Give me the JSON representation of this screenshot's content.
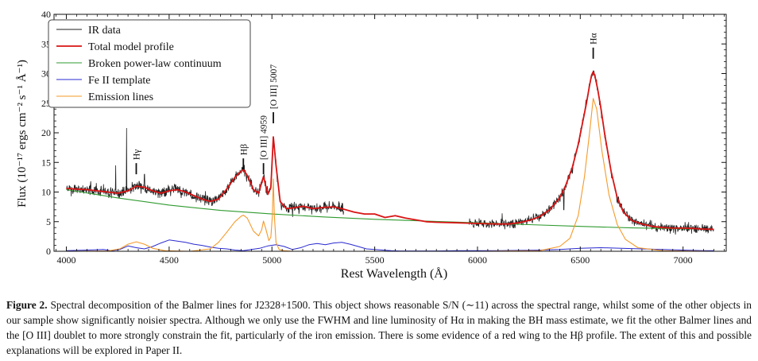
{
  "colors": {
    "ir_data": "#222222",
    "model": "#d81414",
    "continuum": "#2f9a2f",
    "fe": "#2a2ad0",
    "emission": "#f59a2a"
  },
  "chart_data": {
    "type": "line",
    "xlabel": "Rest Wavelength (Å)",
    "ylabel": "Flux (10⁻¹⁷ ergs cm⁻² s⁻¹ Å⁻¹)",
    "xlim": [
      3940,
      7210
    ],
    "ylim": [
      0,
      40
    ],
    "xticks": [
      4000,
      4500,
      5000,
      5500,
      6000,
      6500,
      7000
    ],
    "yticks": [
      0,
      5,
      10,
      15,
      20,
      25,
      30,
      35,
      40
    ],
    "legend": {
      "position": "top-left",
      "entries": [
        {
          "label": "IR data",
          "color": "#222222"
        },
        {
          "label": "Total model profile",
          "color": "#d81414"
        },
        {
          "label": "Broken power-law continuum",
          "color": "#2f9a2f"
        },
        {
          "label": "Fe II template",
          "color": "#2a2ad0"
        },
        {
          "label": "Emission lines",
          "color": "#f59a2a"
        }
      ]
    },
    "annotations": [
      {
        "label": "Hγ",
        "x": 4340,
        "y": 13.0
      },
      {
        "label": "Hβ",
        "x": 4861,
        "y": 13.8
      },
      {
        "label": "[O III] 4959",
        "x": 4959,
        "y": 13.0
      },
      {
        "label": "[O III] 5007",
        "x": 5007,
        "y": 21.6
      },
      {
        "label": "Hα",
        "x": 6563,
        "y": 32.5
      }
    ],
    "series": [
      {
        "name": "Broken power-law continuum",
        "x": [
          4000,
          4250,
          4500,
          4750,
          5000,
          5250,
          5500,
          5750,
          6000,
          6250,
          6500,
          6750,
          7000,
          7150
        ],
        "values": [
          10.4,
          9.0,
          7.8,
          6.9,
          6.3,
          5.8,
          5.4,
          5.1,
          4.8,
          4.5,
          4.2,
          3.95,
          3.8,
          3.7
        ]
      },
      {
        "name": "Total model profile",
        "x": [
          4000,
          4050,
          4100,
          4150,
          4200,
          4250,
          4300,
          4340,
          4380,
          4420,
          4460,
          4500,
          4540,
          4580,
          4620,
          4660,
          4700,
          4740,
          4780,
          4820,
          4850,
          4861,
          4880,
          4910,
          4935,
          4959,
          4980,
          4995,
          5007,
          5020,
          5040,
          5070,
          5100,
          5150,
          5200,
          5250,
          5300,
          5350,
          5400,
          5450,
          5500,
          5550,
          5600,
          5650,
          5700,
          5750,
          5800,
          5850,
          5900,
          5950,
          6000,
          6050,
          6100,
          6150,
          6200,
          6250,
          6300,
          6350,
          6400,
          6430,
          6460,
          6490,
          6510,
          6530,
          6545,
          6555,
          6563,
          6572,
          6585,
          6600,
          6620,
          6650,
          6680,
          6710,
          6750,
          6800,
          6850,
          6900,
          6950,
          7000,
          7050,
          7100,
          7150
        ],
        "values": [
          10.6,
          10.5,
          10.4,
          10.2,
          10.0,
          9.8,
          10.2,
          11.0,
          10.8,
          10.2,
          9.8,
          10.2,
          10.4,
          10.0,
          9.4,
          8.8,
          8.4,
          8.8,
          10.5,
          12.5,
          13.5,
          13.8,
          12.8,
          10.4,
          9.8,
          12.6,
          9.6,
          10.8,
          19.3,
          14.5,
          8.4,
          7.2,
          7.3,
          7.6,
          7.2,
          7.4,
          7.5,
          7.1,
          6.6,
          6.3,
          6.3,
          5.7,
          6.0,
          5.6,
          5.3,
          5.0,
          4.9,
          4.85,
          4.8,
          4.75,
          4.7,
          4.65,
          4.6,
          4.6,
          4.8,
          5.2,
          5.8,
          7.0,
          9.0,
          11.2,
          14.0,
          18.0,
          21.5,
          25.0,
          28.0,
          29.7,
          30.3,
          29.5,
          27.3,
          24.2,
          19.5,
          13.5,
          9.0,
          6.6,
          5.2,
          4.6,
          4.2,
          4.0,
          3.9,
          3.9,
          3.85,
          3.75,
          3.7
        ]
      },
      {
        "name": "Fe II template",
        "x": [
          4000,
          4100,
          4180,
          4220,
          4260,
          4300,
          4340,
          4380,
          4420,
          4460,
          4500,
          4540,
          4580,
          4620,
          4660,
          4700,
          4740,
          4780,
          4820,
          4860,
          4900,
          4940,
          4980,
          5020,
          5060,
          5100,
          5140,
          5180,
          5220,
          5260,
          5300,
          5340,
          5380,
          5420,
          5460,
          5500,
          5540,
          5580,
          5620,
          5700,
          5800,
          5900,
          6000,
          6100,
          6200,
          6300,
          6400,
          6500,
          6600,
          6700,
          6800,
          6900,
          7000,
          7100,
          7150
        ],
        "values": [
          0.1,
          0.2,
          0.3,
          0.1,
          0.3,
          0.9,
          0.6,
          0.4,
          0.8,
          1.4,
          1.9,
          1.7,
          1.5,
          1.2,
          1.0,
          0.7,
          0.5,
          0.4,
          0.2,
          0.1,
          0.3,
          0.5,
          0.9,
          1.1,
          0.8,
          0.3,
          0.6,
          1.1,
          1.3,
          1.1,
          1.4,
          1.5,
          1.2,
          0.8,
          0.4,
          0.3,
          0.2,
          0.1,
          0.05,
          0.05,
          0.05,
          0.1,
          0.1,
          0.1,
          0.15,
          0.2,
          0.3,
          0.5,
          0.6,
          0.5,
          0.4,
          0.3,
          0.2,
          0.1,
          0.1
        ]
      },
      {
        "name": "Emission lines",
        "x": [
          4000,
          4200,
          4260,
          4300,
          4340,
          4380,
          4420,
          4480,
          4600,
          4700,
          4740,
          4780,
          4820,
          4850,
          4861,
          4880,
          4910,
          4935,
          4950,
          4959,
          4970,
          4985,
          4995,
          5002,
          5007,
          5012,
          5020,
          5035,
          5060,
          5100,
          5200,
          5400,
          6000,
          6300,
          6400,
          6450,
          6490,
          6520,
          6545,
          6563,
          6580,
          6605,
          6640,
          6680,
          6720,
          6780,
          6900,
          7150
        ],
        "values": [
          0,
          0.05,
          0.4,
          1.2,
          1.6,
          1.2,
          0.5,
          0.1,
          0,
          0.4,
          1.5,
          3.2,
          5.0,
          5.9,
          6.1,
          5.6,
          3.4,
          2.6,
          3.6,
          5.1,
          3.8,
          1.8,
          2.4,
          6.0,
          12.2,
          6.0,
          1.5,
          0.3,
          0.1,
          0,
          0,
          0,
          0,
          0.1,
          0.8,
          2.2,
          6.0,
          12.5,
          20.0,
          25.8,
          24.0,
          17.0,
          9.5,
          4.5,
          2.0,
          0.6,
          0.1,
          0
        ]
      }
    ],
    "noisy_data_segments": [
      {
        "name": "IR data",
        "x_range": [
          4000,
          5350
        ],
        "follows": "Total model profile",
        "noise_sd": 0.7,
        "spikes": [
          {
            "x": 4240,
            "y": 14.5
          },
          {
            "x": 4293,
            "y": 20.8
          },
          {
            "x": 4380,
            "y": 13.0
          },
          {
            "x": 5007,
            "y": 18.8
          }
        ]
      },
      {
        "name": "IR data",
        "x_range": [
          5960,
          7150
        ],
        "follows": "Total model profile",
        "noise_sd": 0.55,
        "spikes": [
          {
            "x": 6120,
            "y": 6.4
          },
          {
            "x": 6420,
            "y": 7.0
          }
        ]
      }
    ]
  },
  "caption": {
    "label": "Figure 2.",
    "text": "Spectral decomposition of the Balmer lines for J2328+1500. This object shows reasonable S/N (∼11) across the spectral range, whilst some of the other objects in our sample show significantly noisier spectra. Although we only use the FWHM and line luminosity of Hα in making the BH mass estimate, we fit the other Balmer lines and the [O III] doublet to more strongly constrain the fit, particularly of the iron emission. There is some evidence of a red wing to the Hβ profile. The extent of this and possible explanations will be explored in Paper II."
  }
}
